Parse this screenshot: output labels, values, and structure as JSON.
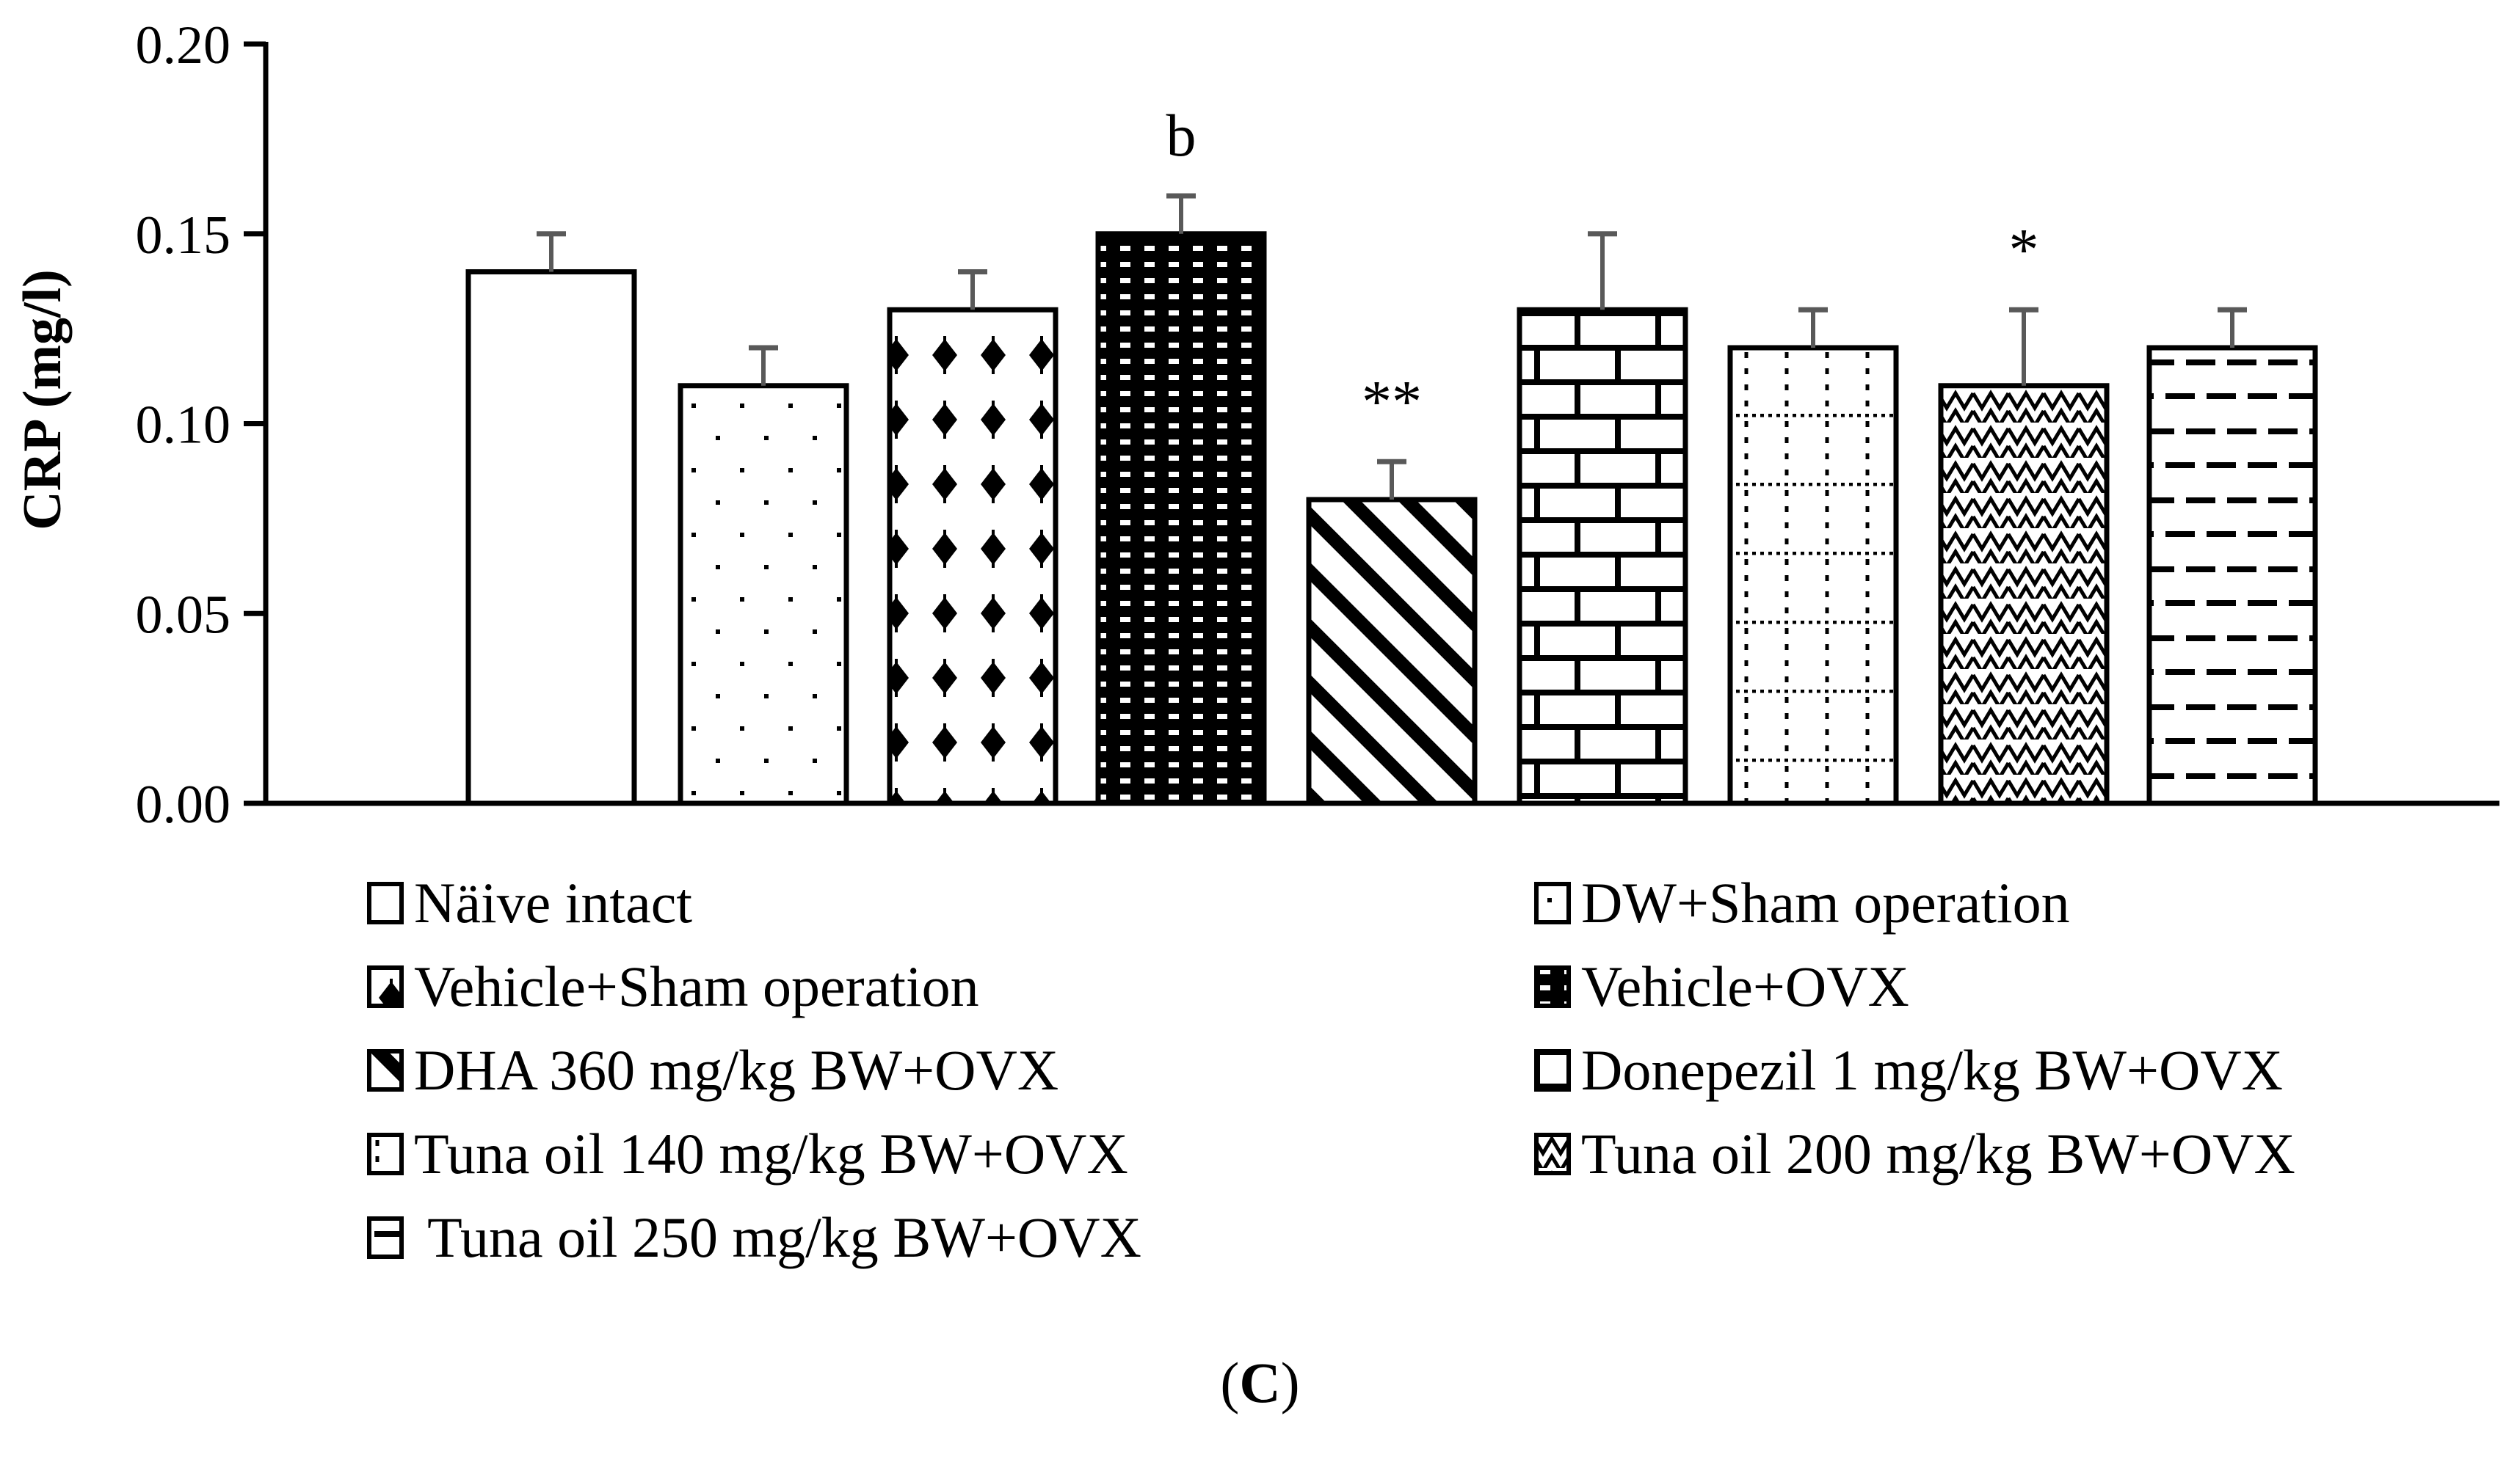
{
  "chart_data": {
    "type": "bar",
    "title": "",
    "xlabel": "",
    "ylabel": "CRP (mg/l)",
    "ylim": [
      0,
      0.2
    ],
    "yticks": [
      "0.00",
      "0.05",
      "0.10",
      "0.15",
      "0.20"
    ],
    "grid": false,
    "legend_position": "bottom, two columns",
    "categories": [
      "Näive intact",
      "DW+Sham operation",
      "Vehicle+Sham operation",
      "Vehicle+OVX",
      "DHA 360 mg/kg BW+OVX",
      "Donepezil 1 mg/kg BW+OVX",
      "Tuna oil 140 mg/kg BW+OVX",
      "Tuna oil 200 mg/kg BW+OVX",
      "Tuna oil 250 mg/kg BW+OVX"
    ],
    "values": [
      0.14,
      0.11,
      0.13,
      0.15,
      0.08,
      0.13,
      0.12,
      0.11,
      0.12
    ],
    "error_upper": [
      0.01,
      0.01,
      0.01,
      0.01,
      0.01,
      0.02,
      0.01,
      0.02,
      0.01
    ],
    "patterns": [
      "blank",
      "sparse-dots",
      "diamonds",
      "dark-dots",
      "diagonal-stripes",
      "bricks",
      "dotted-grid",
      "zigzag",
      "dashes"
    ],
    "annotations": [
      {
        "category_index": 3,
        "text": "b"
      },
      {
        "category_index": 4,
        "text": "**"
      },
      {
        "category_index": 7,
        "text": "*"
      }
    ],
    "colors": {
      "bar_edge": "#000000",
      "error_bar": "#595959",
      "fill": "#ffffff"
    }
  },
  "legend": {
    "items": [
      {
        "label": "Näive intact",
        "pattern": "blank"
      },
      {
        "label": "DW+Sham operation",
        "pattern": "sparse-dots"
      },
      {
        "label": "Vehicle+Sham operation",
        "pattern": "diamonds"
      },
      {
        "label": "Vehicle+OVX",
        "pattern": "dark-dots"
      },
      {
        "label": "DHA 360 mg/kg BW+OVX",
        "pattern": "diagonal-stripes"
      },
      {
        "label": "Donepezil 1 mg/kg BW+OVX",
        "pattern": "bricks"
      },
      {
        "label": "Tuna oil 140 mg/kg BW+OVX",
        "pattern": "dotted-grid"
      },
      {
        "label": "Tuna oil 200 mg/kg BW+OVX",
        "pattern": "zigzag"
      },
      {
        "label": " Tuna oil 250 mg/kg BW+OVX",
        "pattern": "dashes"
      }
    ]
  },
  "panel_label": {
    "open": "(",
    "letter": "C",
    "close": ")"
  }
}
